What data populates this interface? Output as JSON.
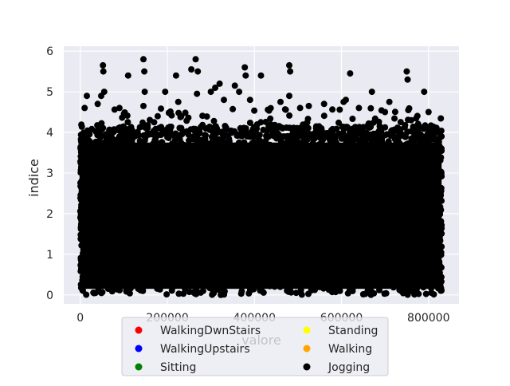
{
  "chart_data": {
    "type": "scatter",
    "title": "",
    "xlabel": "valore",
    "ylabel": "indice",
    "xlim": [
      -38000,
      870000
    ],
    "ylim": [
      -0.22,
      6.12
    ],
    "xticks": [
      0,
      200000,
      400000,
      600000,
      800000
    ],
    "xtick_labels": [
      "0",
      "200000",
      "400000",
      "600000",
      "800000"
    ],
    "yticks": [
      0,
      1,
      2,
      3,
      4,
      5,
      6
    ],
    "ytick_labels": [
      "0",
      "1",
      "2",
      "3",
      "4",
      "5",
      "6"
    ],
    "grid": true,
    "style": "seaborn-darkgrid",
    "legend_placement": "lower center (overlapping x-axis)",
    "series": [
      {
        "name": "WalkingDwnStairs",
        "color": "#ff0000",
        "x_range": [
          0,
          830000
        ],
        "y_range": [
          0,
          3.9
        ]
      },
      {
        "name": "WalkingUpstairs",
        "color": "#0000ff",
        "x_range": [
          0,
          830000
        ],
        "y_range": [
          0,
          3.9
        ]
      },
      {
        "name": "Sitting",
        "color": "#008000",
        "x_range": [
          0,
          830000
        ],
        "y_range": [
          0,
          3.9
        ]
      },
      {
        "name": "Standing",
        "color": "#ffff00",
        "x_range": [
          0,
          830000
        ],
        "y_range": [
          0,
          3.9
        ]
      },
      {
        "name": "Walking",
        "color": "#ffa500",
        "x_range": [
          0,
          830000
        ],
        "y_range": [
          0,
          3.9
        ]
      },
      {
        "name": "Jogging",
        "color": "#000000",
        "x_range": [
          0,
          830000
        ],
        "y_range": [
          0,
          3.9
        ],
        "outliers": [
          {
            "x": 52000,
            "y": 5.65
          },
          {
            "x": 53000,
            "y": 5.5
          },
          {
            "x": 55000,
            "y": 5.0
          },
          {
            "x": 48000,
            "y": 4.9
          },
          {
            "x": 110000,
            "y": 5.4
          },
          {
            "x": 145000,
            "y": 5.8
          },
          {
            "x": 147000,
            "y": 5.5
          },
          {
            "x": 148000,
            "y": 5.0
          },
          {
            "x": 145000,
            "y": 4.65
          },
          {
            "x": 195000,
            "y": 5.0
          },
          {
            "x": 220000,
            "y": 5.4
          },
          {
            "x": 225000,
            "y": 4.75
          },
          {
            "x": 255000,
            "y": 5.55
          },
          {
            "x": 265000,
            "y": 5.8
          },
          {
            "x": 270000,
            "y": 5.5
          },
          {
            "x": 268000,
            "y": 4.95
          },
          {
            "x": 300000,
            "y": 5.0
          },
          {
            "x": 310000,
            "y": 5.1
          },
          {
            "x": 320000,
            "y": 5.2
          },
          {
            "x": 355000,
            "y": 5.15
          },
          {
            "x": 365000,
            "y": 5.0
          },
          {
            "x": 380000,
            "y": 5.4
          },
          {
            "x": 378000,
            "y": 5.6
          },
          {
            "x": 415000,
            "y": 5.4
          },
          {
            "x": 480000,
            "y": 5.65
          },
          {
            "x": 482000,
            "y": 5.5
          },
          {
            "x": 480000,
            "y": 4.9
          },
          {
            "x": 525000,
            "y": 4.65
          },
          {
            "x": 620000,
            "y": 5.45
          },
          {
            "x": 670000,
            "y": 5.0
          },
          {
            "x": 710000,
            "y": 4.75
          },
          {
            "x": 750000,
            "y": 5.5
          },
          {
            "x": 752000,
            "y": 5.3
          },
          {
            "x": 790000,
            "y": 5.0
          },
          {
            "x": 15000,
            "y": 4.9
          },
          {
            "x": 10000,
            "y": 4.6
          },
          {
            "x": 40000,
            "y": 4.7
          },
          {
            "x": 90000,
            "y": 4.6
          },
          {
            "x": 330000,
            "y": 4.8
          },
          {
            "x": 390000,
            "y": 4.8
          },
          {
            "x": 460000,
            "y": 4.75
          },
          {
            "x": 505000,
            "y": 4.6
          },
          {
            "x": 560000,
            "y": 4.7
          },
          {
            "x": 605000,
            "y": 4.75
          },
          {
            "x": 640000,
            "y": 4.6
          },
          {
            "x": 700000,
            "y": 4.5
          },
          {
            "x": 760000,
            "y": 4.3
          },
          {
            "x": 800000,
            "y": 4.5
          },
          {
            "x": 830000,
            "y": 3.9
          },
          {
            "x": 610000,
            "y": 4.8
          }
        ]
      }
    ]
  }
}
